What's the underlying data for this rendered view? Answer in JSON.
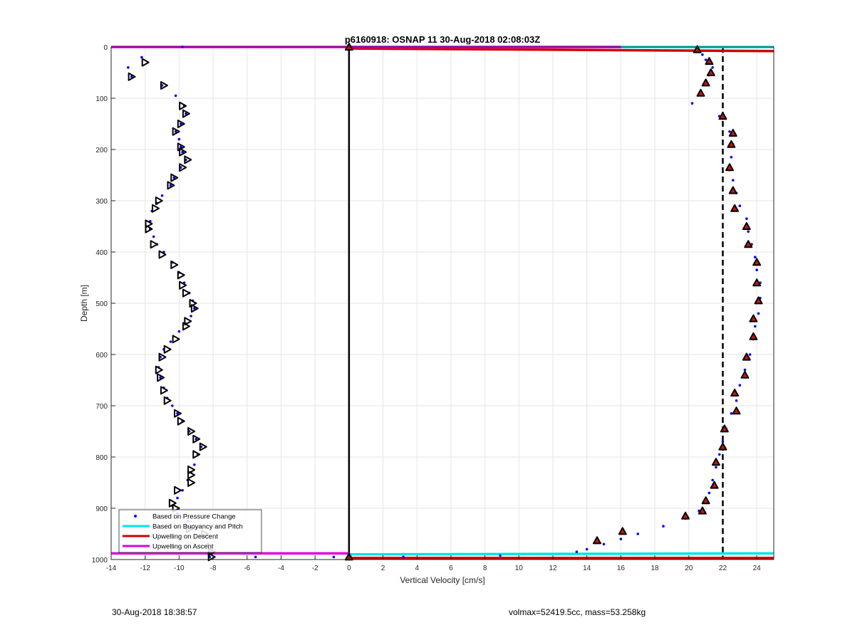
{
  "chart_data": {
    "type": "scatter",
    "title": "p6160918: OSNAP 11 30-Aug-2018 02:08:03Z",
    "xlabel": "Vertical Velocity [cm/s]",
    "ylabel": "Depth [m]",
    "xlim": [
      -14,
      25
    ],
    "ylim": [
      0,
      1000
    ],
    "y_reversed": true,
    "grid": true,
    "x_ticks": [
      -14,
      -12,
      -10,
      -8,
      -6,
      -4,
      -2,
      0,
      2,
      4,
      6,
      8,
      10,
      12,
      14,
      16,
      18,
      20,
      22,
      24
    ],
    "y_ticks": [
      0,
      100,
      200,
      300,
      400,
      500,
      600,
      700,
      800,
      900,
      1000
    ],
    "legend_position": "bottom-left",
    "legend": [
      {
        "label": "Based on Pressure Change",
        "color": "#0000ff",
        "style": "dot"
      },
      {
        "label": "Based on Buoyancy and Pitch",
        "color": "#00e5e5",
        "style": "line"
      },
      {
        "label": "Upwelling on Descent",
        "color": "#d00000",
        "style": "line"
      },
      {
        "label": "Upwelling on Ascent",
        "color": "#e000e0",
        "style": "line"
      }
    ],
    "series": [
      {
        "name": "Based on Pressure Change",
        "color": "#0000ff",
        "descent_profile": [
          [
            -9.8,
            0
          ],
          [
            -12.2,
            20
          ],
          [
            -13.0,
            40
          ],
          [
            -12.8,
            58
          ],
          [
            -11.0,
            75
          ],
          [
            -10.2,
            95
          ],
          [
            -9.7,
            115
          ],
          [
            -9.6,
            130
          ],
          [
            -9.9,
            150
          ],
          [
            -10.2,
            165
          ],
          [
            -10.0,
            180
          ],
          [
            -9.9,
            195
          ],
          [
            -9.8,
            205
          ],
          [
            -9.6,
            220
          ],
          [
            -9.9,
            235
          ],
          [
            -10.3,
            255
          ],
          [
            -10.5,
            270
          ],
          [
            -11.0,
            290
          ],
          [
            -11.3,
            305
          ],
          [
            -11.6,
            320
          ],
          [
            -11.7,
            340
          ],
          [
            -11.7,
            355
          ],
          [
            -11.5,
            370
          ],
          [
            -11.3,
            385
          ],
          [
            -10.9,
            400
          ],
          [
            -10.4,
            420
          ],
          [
            -10.0,
            440
          ],
          [
            -9.7,
            460
          ],
          [
            -9.4,
            480
          ],
          [
            -9.2,
            495
          ],
          [
            -9.1,
            510
          ],
          [
            -9.3,
            525
          ],
          [
            -9.6,
            540
          ],
          [
            -10.0,
            555
          ],
          [
            -10.5,
            575
          ],
          [
            -10.9,
            590
          ],
          [
            -11.1,
            605
          ],
          [
            -11.2,
            625
          ],
          [
            -11.1,
            645
          ],
          [
            -10.9,
            665
          ],
          [
            -10.7,
            685
          ],
          [
            -10.4,
            700
          ],
          [
            -10.1,
            715
          ],
          [
            -9.8,
            730
          ],
          [
            -9.4,
            750
          ],
          [
            -9.0,
            765
          ],
          [
            -8.7,
            780
          ],
          [
            -8.9,
            795
          ],
          [
            -9.1,
            815
          ],
          [
            -9.3,
            830
          ],
          [
            -9.5,
            845
          ],
          [
            -9.8,
            865
          ],
          [
            -10.1,
            880
          ],
          [
            -10.4,
            895
          ],
          [
            -10.1,
            910
          ],
          [
            -9.5,
            925
          ],
          [
            -9.0,
            940
          ],
          [
            -8.5,
            955
          ],
          [
            -8.3,
            970
          ],
          [
            -8.2,
            985
          ],
          [
            -8.2,
            995
          ]
        ],
        "ascent_profile": [
          [
            20.5,
            5
          ],
          [
            20.8,
            15
          ],
          [
            21.0,
            25
          ],
          [
            21.4,
            40
          ],
          [
            21.2,
            55
          ],
          [
            21.0,
            70
          ],
          [
            20.7,
            90
          ],
          [
            20.2,
            110
          ],
          [
            21.8,
            135
          ],
          [
            22.4,
            165
          ],
          [
            22.6,
            190
          ],
          [
            22.5,
            215
          ],
          [
            22.4,
            240
          ],
          [
            22.6,
            260
          ],
          [
            22.8,
            285
          ],
          [
            23.0,
            310
          ],
          [
            23.4,
            335
          ],
          [
            23.5,
            360
          ],
          [
            23.7,
            385
          ],
          [
            23.9,
            410
          ],
          [
            24.0,
            435
          ],
          [
            24.2,
            460
          ],
          [
            24.2,
            490
          ],
          [
            24.1,
            520
          ],
          [
            23.9,
            545
          ],
          [
            23.8,
            570
          ],
          [
            23.6,
            600
          ],
          [
            23.3,
            630
          ],
          [
            23.0,
            660
          ],
          [
            22.8,
            690
          ],
          [
            22.5,
            715
          ],
          [
            22.2,
            745
          ],
          [
            22.0,
            770
          ],
          [
            21.8,
            795
          ],
          [
            21.6,
            820
          ],
          [
            21.4,
            845
          ],
          [
            21.2,
            870
          ],
          [
            21.0,
            885
          ],
          [
            20.6,
            905
          ],
          [
            19.8,
            920
          ],
          [
            18.5,
            935
          ],
          [
            17.0,
            950
          ],
          [
            16.0,
            960
          ],
          [
            15.0,
            970
          ],
          [
            14.0,
            980
          ],
          [
            13.4,
            985
          ],
          [
            8.9,
            992
          ],
          [
            3.2,
            995
          ],
          [
            -0.9,
            995
          ],
          [
            -5.5,
            995
          ]
        ]
      },
      {
        "name": "Based on Buoyancy and Pitch",
        "color": "#00e5e5",
        "lines": [
          [
            [
              0,
              0
            ],
            [
              25,
              0
            ]
          ],
          [
            [
              0,
              990
            ],
            [
              25,
              988
            ]
          ]
        ]
      },
      {
        "name": "Upwelling on Descent",
        "color": "#d00000",
        "lines": [
          [
            [
              0,
              3
            ],
            [
              25,
              8
            ]
          ],
          [
            [
              0,
              997
            ],
            [
              25,
              997
            ]
          ]
        ]
      },
      {
        "name": "Upwelling on Ascent",
        "color": "#e000e0",
        "lines": [
          [
            [
              -14,
              0
            ],
            [
              16,
              0
            ]
          ],
          [
            [
              -14,
              988
            ],
            [
              0,
              988
            ]
          ]
        ]
      },
      {
        "name": "glide-markers-left",
        "color": "#000000",
        "points": [
          [
            -12.0,
            30
          ],
          [
            -12.8,
            58
          ],
          [
            -10.9,
            75
          ],
          [
            -9.8,
            115
          ],
          [
            -9.6,
            130
          ],
          [
            -9.9,
            150
          ],
          [
            -10.2,
            165
          ],
          [
            -9.9,
            195
          ],
          [
            -9.8,
            205
          ],
          [
            -9.5,
            220
          ],
          [
            -9.8,
            235
          ],
          [
            -10.3,
            255
          ],
          [
            -10.5,
            270
          ],
          [
            -11.2,
            300
          ],
          [
            -11.4,
            315
          ],
          [
            -11.8,
            345
          ],
          [
            -11.8,
            355
          ],
          [
            -11.5,
            385
          ],
          [
            -11.0,
            405
          ],
          [
            -10.3,
            425
          ],
          [
            -9.9,
            445
          ],
          [
            -9.8,
            465
          ],
          [
            -9.6,
            480
          ],
          [
            -9.2,
            500
          ],
          [
            -9.1,
            510
          ],
          [
            -9.5,
            535
          ],
          [
            -9.6,
            545
          ],
          [
            -10.2,
            570
          ],
          [
            -10.7,
            590
          ],
          [
            -11.0,
            605
          ],
          [
            -11.2,
            630
          ],
          [
            -11.1,
            645
          ],
          [
            -10.9,
            670
          ],
          [
            -10.7,
            690
          ],
          [
            -10.1,
            715
          ],
          [
            -9.9,
            730
          ],
          [
            -9.3,
            750
          ],
          [
            -9.0,
            765
          ],
          [
            -8.6,
            780
          ],
          [
            -9.0,
            795
          ],
          [
            -9.3,
            825
          ],
          [
            -9.3,
            835
          ],
          [
            -9.3,
            850
          ],
          [
            -10.1,
            865
          ],
          [
            -10.4,
            890
          ],
          [
            -10.2,
            900
          ],
          [
            -9.4,
            940
          ],
          [
            -8.5,
            950
          ],
          [
            -8.1,
            985
          ],
          [
            -8.1,
            995
          ]
        ]
      },
      {
        "name": "glide-markers-right",
        "color": "#000000",
        "points": [
          [
            20.5,
            5
          ],
          [
            21.2,
            28
          ],
          [
            21.3,
            50
          ],
          [
            21.0,
            70
          ],
          [
            20.7,
            90
          ],
          [
            22.0,
            135
          ],
          [
            22.6,
            168
          ],
          [
            22.5,
            190
          ],
          [
            22.4,
            235
          ],
          [
            22.6,
            280
          ],
          [
            22.7,
            315
          ],
          [
            23.4,
            350
          ],
          [
            23.5,
            385
          ],
          [
            24.0,
            420
          ],
          [
            24.0,
            460
          ],
          [
            24.1,
            495
          ],
          [
            23.8,
            530
          ],
          [
            23.8,
            565
          ],
          [
            23.4,
            605
          ],
          [
            23.3,
            640
          ],
          [
            22.7,
            675
          ],
          [
            22.8,
            710
          ],
          [
            22.1,
            745
          ],
          [
            22.0,
            780
          ],
          [
            21.6,
            810
          ],
          [
            21.5,
            855
          ],
          [
            21.0,
            885
          ],
          [
            20.8,
            905
          ],
          [
            19.8,
            915
          ],
          [
            16.1,
            945
          ],
          [
            14.6,
            963
          ],
          [
            0.0,
            0
          ],
          [
            0.0,
            995
          ]
        ]
      }
    ],
    "reference_lines": [
      {
        "orientation": "vertical",
        "x": 0,
        "style": "solid",
        "color": "#000000"
      },
      {
        "orientation": "vertical",
        "x": 22,
        "style": "dashed",
        "color": "#000000"
      }
    ]
  },
  "footer": {
    "timestamp": "30-Aug-2018 18:38:57",
    "info": "volmax=52419.5cc, mass=53.258kg"
  }
}
